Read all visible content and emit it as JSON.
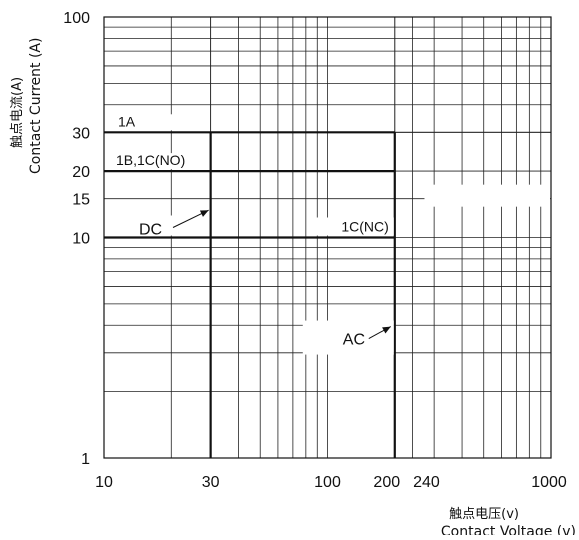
{
  "chart_data": {
    "type": "line",
    "title": "",
    "x_scale": "log",
    "y_scale": "log",
    "xlim": [
      10,
      1000
    ],
    "ylim": [
      1,
      100
    ],
    "grid": true,
    "xlabel_cn": "触点电压(v)",
    "xlabel": "Contact Voltage (v)",
    "ylabel_cn": "触点电流(A)",
    "ylabel": "Contact Current (A)",
    "x_ticks": [
      10,
      30,
      100,
      200,
      240,
      1000
    ],
    "x_tick_labels": [
      "10",
      "30",
      "100",
      "200",
      "240",
      "1000"
    ],
    "y_ticks": [
      1,
      10,
      15,
      20,
      30,
      100
    ],
    "y_tick_labels": [
      "1",
      "10",
      "15",
      "20",
      "30",
      "100"
    ],
    "series": [
      {
        "name": "1A",
        "points": [
          [
            10,
            30
          ],
          [
            200,
            30
          ]
        ]
      },
      {
        "name": "1B,1C(NO)",
        "points": [
          [
            10,
            20
          ],
          [
            200,
            20
          ]
        ]
      },
      {
        "name": "1C(NC)",
        "points": [
          [
            10,
            10
          ],
          [
            200,
            10
          ]
        ]
      }
    ],
    "voltage_limits": [
      {
        "x": 30,
        "ylim": [
          1,
          30
        ]
      },
      {
        "x": 200,
        "ylim": [
          1,
          30
        ]
      }
    ],
    "annotations": [
      {
        "text": "DC"
      },
      {
        "text": "AC"
      }
    ]
  }
}
